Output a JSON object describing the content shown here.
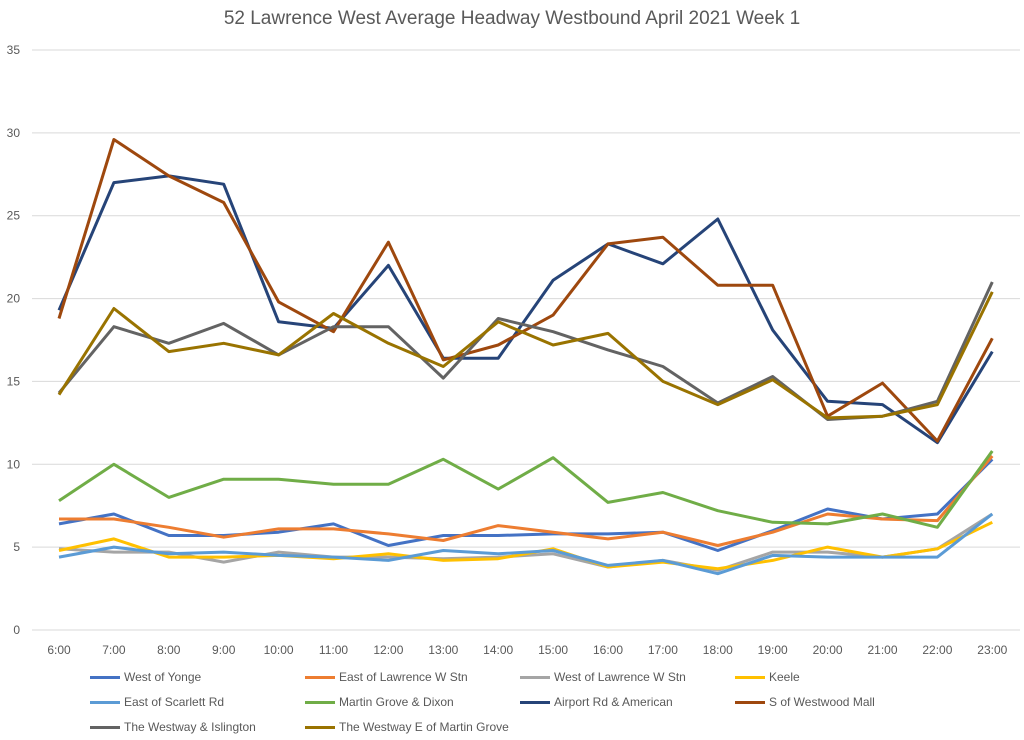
{
  "chart_data": {
    "type": "line",
    "title": "52 Lawrence West  Average Headway Westbound April 2021 Week 1",
    "xlabel": "",
    "ylabel": "",
    "ylim": [
      0,
      35
    ],
    "yticks": [
      "0",
      "5",
      "10",
      "15",
      "20",
      "25",
      "30",
      "35"
    ],
    "grid": true,
    "legend_position": "bottom",
    "categories": [
      "6:00",
      "7:00",
      "8:00",
      "9:00",
      "10:00",
      "11:00",
      "12:00",
      "13:00",
      "14:00",
      "15:00",
      "16:00",
      "17:00",
      "18:00",
      "19:00",
      "20:00",
      "21:00",
      "22:00",
      "23:00"
    ],
    "series": [
      {
        "name": "West of Yonge",
        "color": "#4472C4",
        "values": [
          6.4,
          7.0,
          5.7,
          5.7,
          5.9,
          6.4,
          5.1,
          5.7,
          5.7,
          5.8,
          5.8,
          5.9,
          4.8,
          6.0,
          7.3,
          6.7,
          7.0,
          10.3
        ]
      },
      {
        "name": "East of Lawrence W Stn",
        "color": "#ED7D31",
        "values": [
          6.7,
          6.7,
          6.2,
          5.6,
          6.1,
          6.1,
          5.8,
          5.4,
          6.3,
          5.9,
          5.5,
          5.9,
          5.1,
          5.9,
          7.0,
          6.7,
          6.6,
          10.5
        ]
      },
      {
        "name": "West of Lawrence W Stn",
        "color": "#A5A5A5",
        "values": [
          4.9,
          4.7,
          4.7,
          4.1,
          4.7,
          4.4,
          4.4,
          4.3,
          4.4,
          4.6,
          3.8,
          4.2,
          3.6,
          4.7,
          4.7,
          4.4,
          4.9,
          7.0
        ]
      },
      {
        "name": "Keele",
        "color": "#FFC000",
        "values": [
          4.8,
          5.5,
          4.4,
          4.4,
          4.5,
          4.3,
          4.6,
          4.2,
          4.3,
          4.9,
          3.8,
          4.1,
          3.7,
          4.2,
          5.0,
          4.4,
          4.9,
          6.5
        ]
      },
      {
        "name": "East of Scarlett Rd",
        "color": "#5B9BD5",
        "values": [
          4.4,
          5.0,
          4.6,
          4.7,
          4.5,
          4.4,
          4.2,
          4.8,
          4.6,
          4.8,
          3.9,
          4.2,
          3.4,
          4.5,
          4.4,
          4.4,
          4.4,
          7.0
        ]
      },
      {
        "name": "Martin Grove & Dixon",
        "color": "#70AD47",
        "values": [
          7.8,
          10.0,
          8.0,
          9.1,
          9.1,
          8.8,
          8.8,
          10.3,
          8.5,
          10.4,
          7.7,
          8.3,
          7.2,
          6.5,
          6.4,
          7.0,
          6.2,
          10.8
        ]
      },
      {
        "name": "Airport Rd & American",
        "color": "#264478",
        "values": [
          19.3,
          27.0,
          27.4,
          26.9,
          18.6,
          18.2,
          22.0,
          16.4,
          16.4,
          21.1,
          23.3,
          22.1,
          24.8,
          18.1,
          13.8,
          13.6,
          11.3,
          16.8
        ]
      },
      {
        "name": "S of Westwood Mall",
        "color": "#9E480E",
        "values": [
          18.8,
          29.6,
          27.4,
          25.8,
          19.8,
          18.0,
          23.4,
          16.3,
          17.2,
          19.0,
          23.3,
          23.7,
          20.8,
          20.8,
          12.9,
          14.9,
          11.4,
          17.6
        ]
      },
      {
        "name": "The Westway & Islington",
        "color": "#636363",
        "values": [
          14.3,
          18.3,
          17.3,
          18.5,
          16.6,
          18.3,
          18.3,
          15.2,
          18.8,
          18.0,
          16.9,
          15.9,
          13.7,
          15.3,
          12.7,
          12.9,
          13.8,
          21.0
        ]
      },
      {
        "name": "The Westway E of Martin Grove",
        "color": "#997300",
        "values": [
          14.2,
          19.4,
          16.8,
          17.3,
          16.6,
          19.1,
          17.3,
          15.9,
          18.6,
          17.2,
          17.9,
          15.0,
          13.6,
          15.1,
          12.8,
          12.9,
          13.6,
          20.4
        ]
      }
    ]
  }
}
